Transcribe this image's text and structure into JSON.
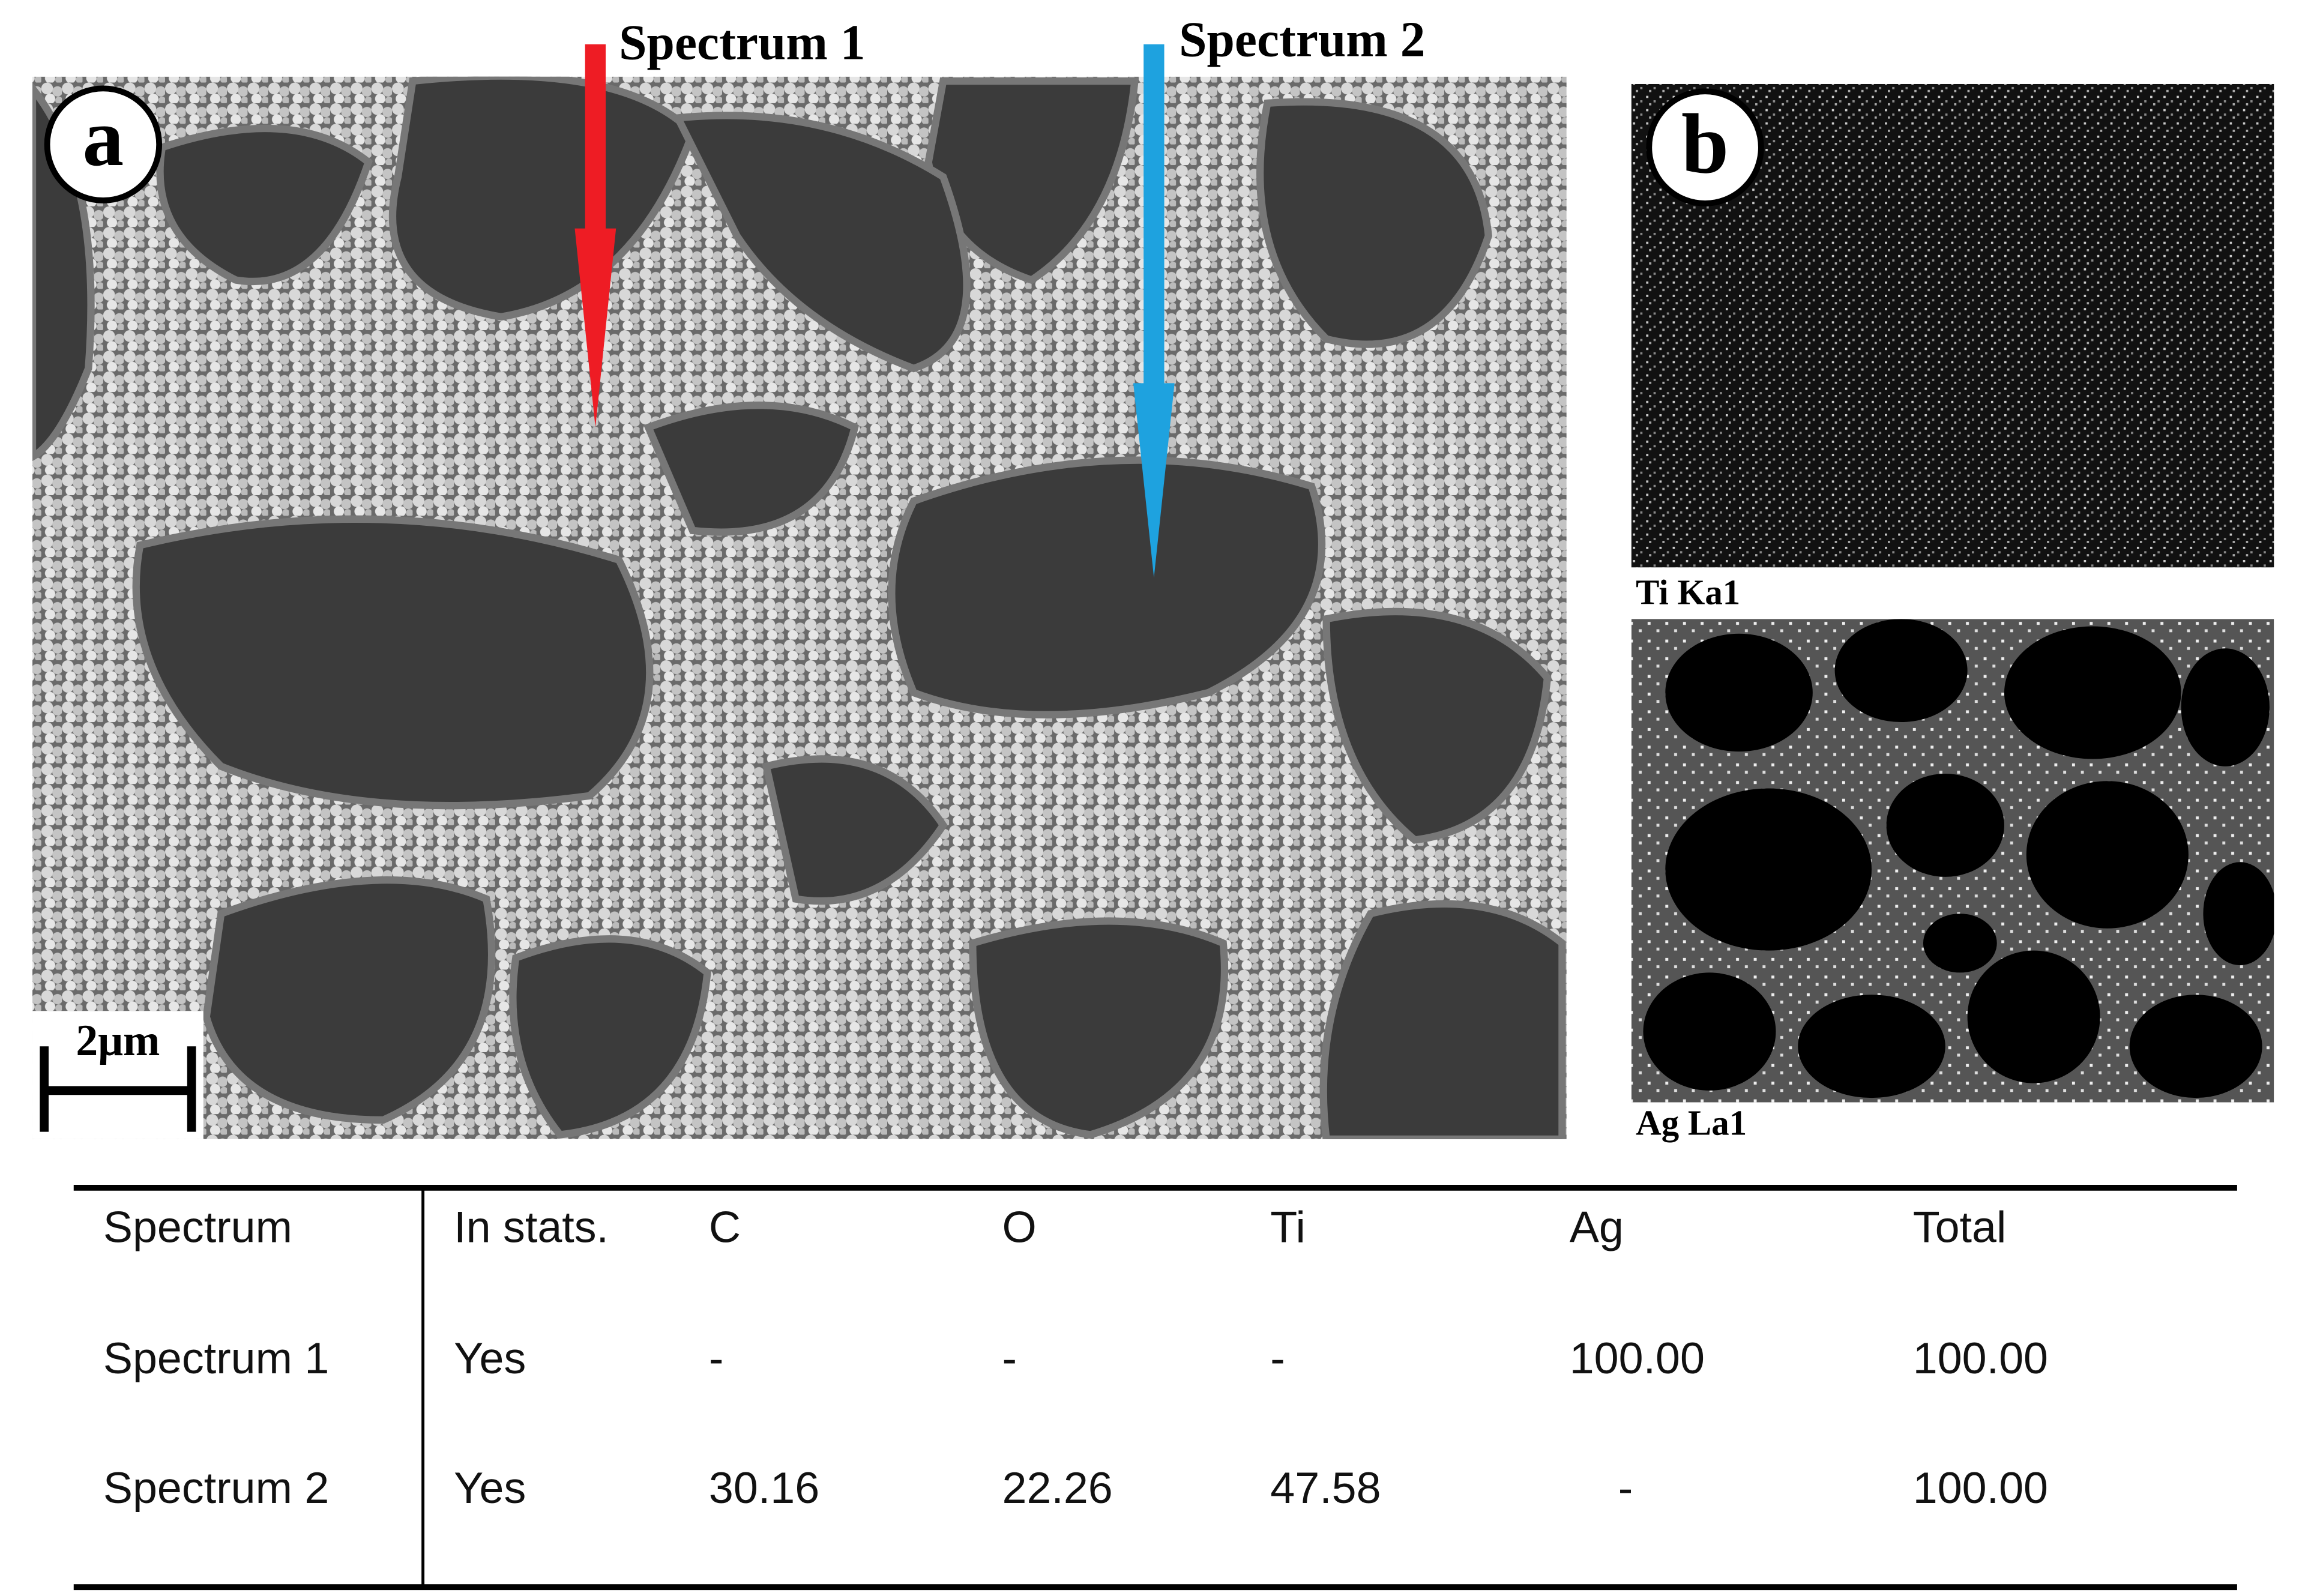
{
  "panels": {
    "a": {
      "label": "a",
      "arrows": [
        "Spectrum 1",
        "Spectrum 2"
      ],
      "scale_bar": "2μm"
    },
    "b": {
      "label": "b",
      "maps": [
        "Ti Ka1",
        "Ag La1"
      ]
    }
  },
  "table": {
    "header": [
      "Spectrum",
      "In stats.",
      "C",
      "O",
      "Ti",
      "Ag",
      "Total"
    ],
    "rows": [
      [
        "Spectrum 1",
        "Yes",
        "-",
        "-",
        "-",
        "100.00",
        "100.00"
      ],
      [
        "Spectrum 2",
        "Yes",
        "30.16",
        "22.26",
        "47.58",
        "-",
        "100.00"
      ]
    ]
  }
}
